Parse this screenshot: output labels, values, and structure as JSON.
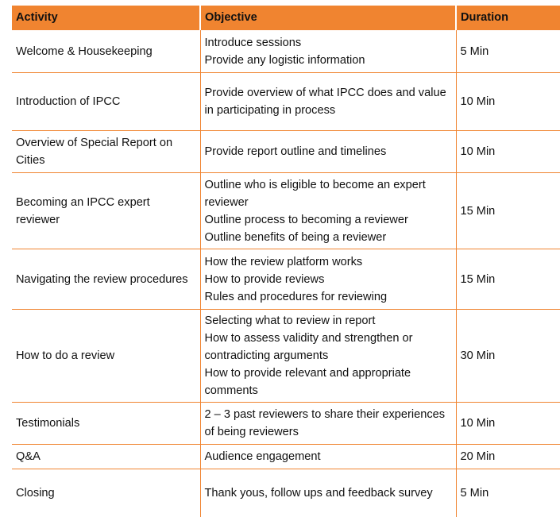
{
  "headers": [
    "Activity",
    "Objective",
    "Duration"
  ],
  "rows": [
    {
      "activity": "Welcome & Housekeeping",
      "objective": [
        "Introduce sessions",
        "Provide any logistic information"
      ],
      "duration": "5 Min"
    },
    {
      "activity": "Introduction of IPCC",
      "objective": [
        "Provide overview of what IPCC does and value in participating in process"
      ],
      "duration": "10 Min"
    },
    {
      "activity": "Overview of Special Report on Cities",
      "objective": [
        "Provide report outline and timelines"
      ],
      "duration": "10 Min"
    },
    {
      "activity": "Becoming an IPCC expert reviewer",
      "objective": [
        "Outline who is eligible to become an expert reviewer",
        "Outline process to becoming a reviewer",
        "Outline benefits of being a reviewer"
      ],
      "duration": "15 Min"
    },
    {
      "activity": "Navigating the review procedures",
      "objective": [
        "How the review platform works",
        "How to provide reviews",
        "Rules and procedures for reviewing"
      ],
      "duration": "15 Min"
    },
    {
      "activity": "How to do a review",
      "objective": [
        "Selecting what to review in report",
        "How to assess validity and strengthen or contradicting arguments",
        "How to provide relevant and appropriate comments"
      ],
      "duration": "30 Min"
    },
    {
      "activity": "Testimonials",
      "objective": [
        "2 – 3 past reviewers to share their experiences of being reviewers"
      ],
      "duration": "10 Min"
    },
    {
      "activity": "Q&A",
      "objective": [
        "Audience engagement"
      ],
      "duration": "20 Min"
    },
    {
      "activity": "Closing",
      "objective": [
        "Thank yous, follow ups and feedback survey"
      ],
      "duration": "5 Min"
    }
  ]
}
